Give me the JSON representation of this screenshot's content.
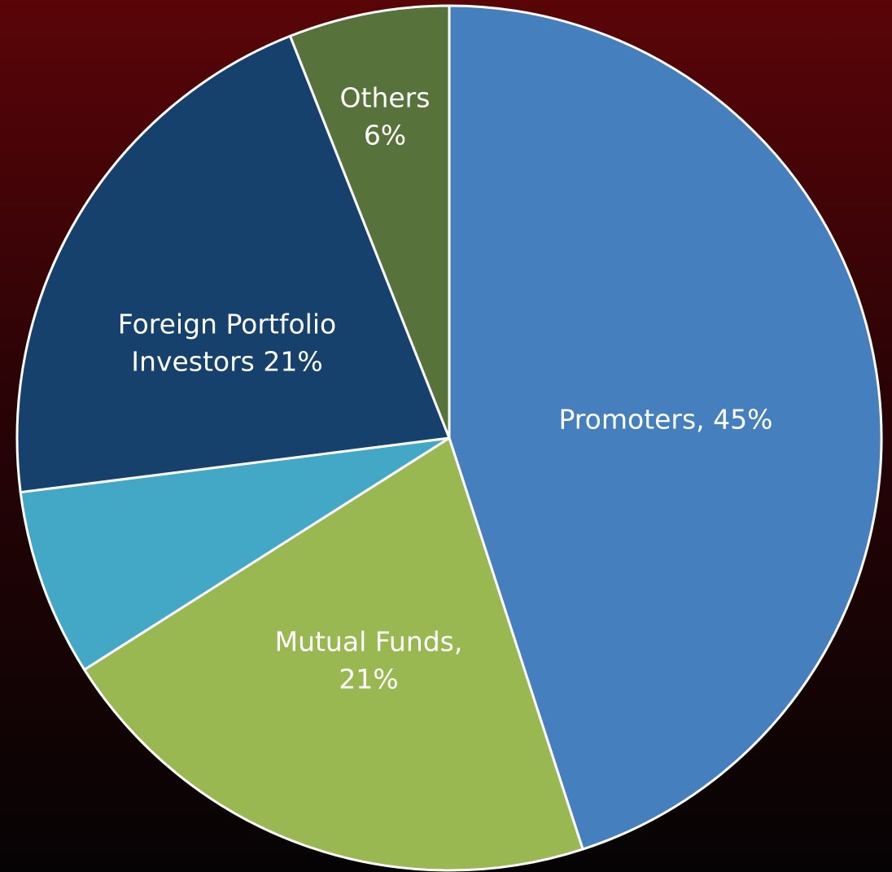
{
  "chart_data": {
    "type": "pie",
    "labels": [
      [
        "Promoters, 45%"
      ],
      [
        "Mutual Funds,",
        "21%"
      ],
      null,
      [
        "Foreign Portfolio",
        "Investors 21%"
      ],
      [
        "Others",
        "6%"
      ]
    ],
    "values": [
      45,
      21,
      7,
      21,
      6
    ],
    "colors": [
      "#467fbd",
      "#9ab851",
      "#42a8c6",
      "#16416d",
      "#57723a"
    ]
  }
}
